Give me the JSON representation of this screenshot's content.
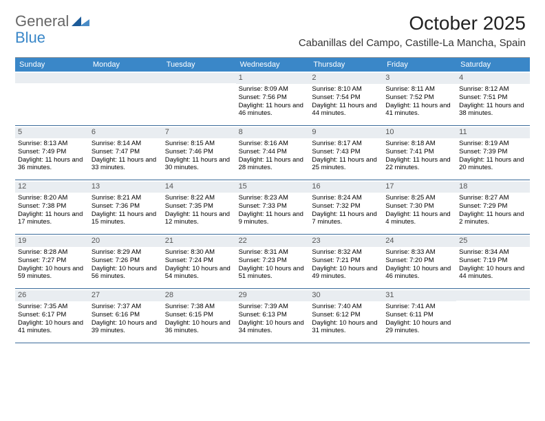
{
  "logo": {
    "text1": "General",
    "text2": "Blue",
    "tri_color1": "#4a8cc7",
    "tri_color2": "#1c5b99"
  },
  "title": "October 2025",
  "location": "Cabanillas del Campo, Castille-La Mancha, Spain",
  "header_bg": "#3a87c8",
  "band_bg": "#e9edf1",
  "row_border": "#3a6a9a",
  "weekdays": [
    "Sunday",
    "Monday",
    "Tuesday",
    "Wednesday",
    "Thursday",
    "Friday",
    "Saturday"
  ],
  "weeks": [
    [
      {
        "n": "",
        "sr": "",
        "ss": "",
        "dl": ""
      },
      {
        "n": "",
        "sr": "",
        "ss": "",
        "dl": ""
      },
      {
        "n": "",
        "sr": "",
        "ss": "",
        "dl": ""
      },
      {
        "n": "1",
        "sr": "8:09 AM",
        "ss": "7:56 PM",
        "dl": "11 hours and 46 minutes."
      },
      {
        "n": "2",
        "sr": "8:10 AM",
        "ss": "7:54 PM",
        "dl": "11 hours and 44 minutes."
      },
      {
        "n": "3",
        "sr": "8:11 AM",
        "ss": "7:52 PM",
        "dl": "11 hours and 41 minutes."
      },
      {
        "n": "4",
        "sr": "8:12 AM",
        "ss": "7:51 PM",
        "dl": "11 hours and 38 minutes."
      }
    ],
    [
      {
        "n": "5",
        "sr": "8:13 AM",
        "ss": "7:49 PM",
        "dl": "11 hours and 36 minutes."
      },
      {
        "n": "6",
        "sr": "8:14 AM",
        "ss": "7:47 PM",
        "dl": "11 hours and 33 minutes."
      },
      {
        "n": "7",
        "sr": "8:15 AM",
        "ss": "7:46 PM",
        "dl": "11 hours and 30 minutes."
      },
      {
        "n": "8",
        "sr": "8:16 AM",
        "ss": "7:44 PM",
        "dl": "11 hours and 28 minutes."
      },
      {
        "n": "9",
        "sr": "8:17 AM",
        "ss": "7:43 PM",
        "dl": "11 hours and 25 minutes."
      },
      {
        "n": "10",
        "sr": "8:18 AM",
        "ss": "7:41 PM",
        "dl": "11 hours and 22 minutes."
      },
      {
        "n": "11",
        "sr": "8:19 AM",
        "ss": "7:39 PM",
        "dl": "11 hours and 20 minutes."
      }
    ],
    [
      {
        "n": "12",
        "sr": "8:20 AM",
        "ss": "7:38 PM",
        "dl": "11 hours and 17 minutes."
      },
      {
        "n": "13",
        "sr": "8:21 AM",
        "ss": "7:36 PM",
        "dl": "11 hours and 15 minutes."
      },
      {
        "n": "14",
        "sr": "8:22 AM",
        "ss": "7:35 PM",
        "dl": "11 hours and 12 minutes."
      },
      {
        "n": "15",
        "sr": "8:23 AM",
        "ss": "7:33 PM",
        "dl": "11 hours and 9 minutes."
      },
      {
        "n": "16",
        "sr": "8:24 AM",
        "ss": "7:32 PM",
        "dl": "11 hours and 7 minutes."
      },
      {
        "n": "17",
        "sr": "8:25 AM",
        "ss": "7:30 PM",
        "dl": "11 hours and 4 minutes."
      },
      {
        "n": "18",
        "sr": "8:27 AM",
        "ss": "7:29 PM",
        "dl": "11 hours and 2 minutes."
      }
    ],
    [
      {
        "n": "19",
        "sr": "8:28 AM",
        "ss": "7:27 PM",
        "dl": "10 hours and 59 minutes."
      },
      {
        "n": "20",
        "sr": "8:29 AM",
        "ss": "7:26 PM",
        "dl": "10 hours and 56 minutes."
      },
      {
        "n": "21",
        "sr": "8:30 AM",
        "ss": "7:24 PM",
        "dl": "10 hours and 54 minutes."
      },
      {
        "n": "22",
        "sr": "8:31 AM",
        "ss": "7:23 PM",
        "dl": "10 hours and 51 minutes."
      },
      {
        "n": "23",
        "sr": "8:32 AM",
        "ss": "7:21 PM",
        "dl": "10 hours and 49 minutes."
      },
      {
        "n": "24",
        "sr": "8:33 AM",
        "ss": "7:20 PM",
        "dl": "10 hours and 46 minutes."
      },
      {
        "n": "25",
        "sr": "8:34 AM",
        "ss": "7:19 PM",
        "dl": "10 hours and 44 minutes."
      }
    ],
    [
      {
        "n": "26",
        "sr": "7:35 AM",
        "ss": "6:17 PM",
        "dl": "10 hours and 41 minutes."
      },
      {
        "n": "27",
        "sr": "7:37 AM",
        "ss": "6:16 PM",
        "dl": "10 hours and 39 minutes."
      },
      {
        "n": "28",
        "sr": "7:38 AM",
        "ss": "6:15 PM",
        "dl": "10 hours and 36 minutes."
      },
      {
        "n": "29",
        "sr": "7:39 AM",
        "ss": "6:13 PM",
        "dl": "10 hours and 34 minutes."
      },
      {
        "n": "30",
        "sr": "7:40 AM",
        "ss": "6:12 PM",
        "dl": "10 hours and 31 minutes."
      },
      {
        "n": "31",
        "sr": "7:41 AM",
        "ss": "6:11 PM",
        "dl": "10 hours and 29 minutes."
      },
      {
        "n": "",
        "sr": "",
        "ss": "",
        "dl": ""
      }
    ]
  ],
  "labels": {
    "sunrise": "Sunrise: ",
    "sunset": "Sunset: ",
    "daylight": "Daylight: "
  }
}
